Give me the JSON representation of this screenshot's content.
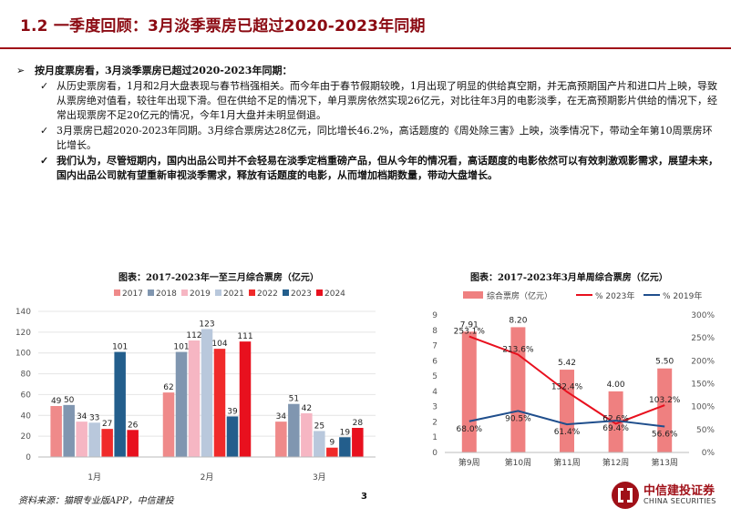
{
  "title": "1.2 一季度回顾：3月淡季票房已超过2020-2023年同期",
  "bullets": {
    "main": "按月度票房看，3月淡季票房已超过2020-2023年同期：",
    "sub": [
      {
        "mark": "✓",
        "text": "从历史票房看，1月和2月大盘表现与春节档强相关。而今年由于春节假期较晚，1月出现了明显的供给真空期，并无高预期国产片和进口片上映，导致从票房绝对值看，较往年出现下滑。但在供给不足的情况下，单月票房依然实现26亿元，对比往年3月的电影淡季，在无高预期影片供给的情况下，经常出现票房不足20亿元的情况，今年1月大盘并未明显倒退。"
      },
      {
        "mark": "✓",
        "text": "3月票房已超2020-2023年同期。3月综合票房达28亿元，同比增长46.2%，高话题度的《周处除三害》上映，淡季情况下，带动全年第10周票房环比增长。"
      },
      {
        "mark": "✓",
        "text": "我们认为，尽管短期内，国内出品公司并不会轻易在淡季定档重磅产品，但从今年的情况看，高话题度的电影依然可以有效刺激观影需求，展望未来，国内出品公司就有望重新审视淡季需求，释放有话题度的电影，从而增加档期数量，带动大盘增长。"
      }
    ]
  },
  "chart_data": [
    {
      "type": "bar",
      "title": "图表：2017-2023年一至三月综合票房（亿元）",
      "categories": [
        "1月",
        "2月",
        "3月"
      ],
      "series": [
        {
          "name": "2017",
          "color": "#ef8a8a",
          "values": [
            49,
            62,
            34
          ]
        },
        {
          "name": "2018",
          "color": "#8096b0",
          "values": [
            50,
            101,
            51
          ]
        },
        {
          "name": "2019",
          "color": "#f6b6c3",
          "values": [
            34,
            112,
            42
          ]
        },
        {
          "name": "2021",
          "color": "#b9c8dc",
          "values": [
            33,
            123,
            25
          ]
        },
        {
          "name": "2022",
          "color": "#f02a2a",
          "values": [
            27,
            104,
            9
          ]
        },
        {
          "name": "2023",
          "color": "#235e8c",
          "values": [
            101,
            39,
            19
          ]
        },
        {
          "name": "2024",
          "color": "#e8101e",
          "values": [
            26,
            111,
            28
          ]
        }
      ],
      "ylim": [
        0,
        140
      ],
      "yticks": [
        0,
        20,
        40,
        60,
        80,
        100,
        120,
        140
      ],
      "legend": "top",
      "grid": true
    },
    {
      "type": "bar+line",
      "title": "图表：2017-2023年3月单周综合票房（亿元）",
      "categories": [
        "第9周",
        "第10周",
        "第11周",
        "第12周",
        "第13周"
      ],
      "bar_series": {
        "name": "综合票房（亿元）",
        "color": "#ef8080",
        "values": [
          7.91,
          8.2,
          5.42,
          4.0,
          5.5
        ],
        "labels": [
          "7.91",
          "8.20",
          "5.42",
          "4.00",
          "5.50"
        ]
      },
      "line_series": [
        {
          "name": "% 2023年",
          "color": "#e8101e",
          "values": [
            253.1,
            213.6,
            132.4,
            62.6,
            103.2
          ],
          "labels": [
            "253.1%",
            "213.6%",
            "132.4%",
            "62.6%",
            "103.2%"
          ]
        },
        {
          "name": "% 2019年",
          "color": "#1f4e8c",
          "values": [
            68.0,
            90.5,
            61.4,
            69.4,
            56.6
          ],
          "labels": [
            "68.0%",
            "90.5%",
            "61.4%",
            "69.4%",
            "56.6%"
          ]
        }
      ],
      "ylim_left": [
        0,
        9
      ],
      "yticks_left": [
        "0",
        "1",
        "2",
        "3",
        "4",
        "5",
        "6",
        "7",
        "8",
        "9"
      ],
      "ylim_right": [
        0,
        300
      ],
      "yticks_right": [
        "0%",
        "50%",
        "100%",
        "150%",
        "200%",
        "250%",
        "300%"
      ],
      "legend": "top"
    }
  ],
  "source": "资料来源：猫眼专业版APP，中信建投",
  "page_number": "3",
  "logo": {
    "cn": "中信建投证券",
    "en": "CHINA SECURITIES"
  }
}
